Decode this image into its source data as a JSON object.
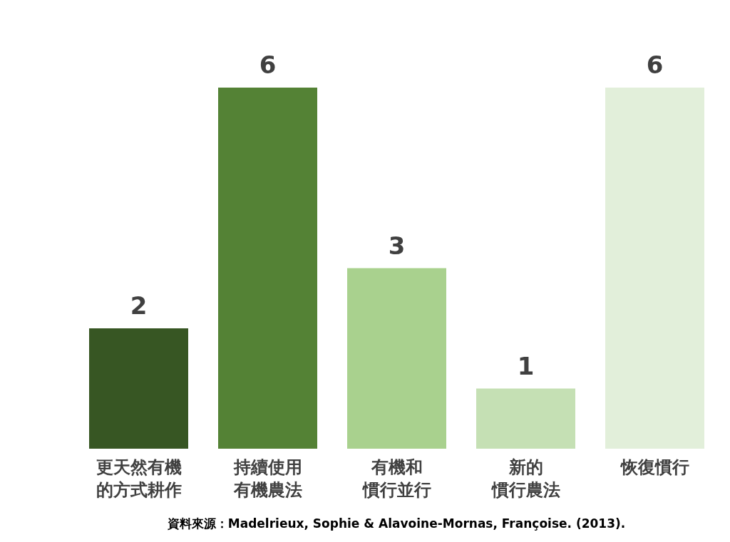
{
  "chart_data": {
    "type": "bar",
    "categories": [
      "更天然有機的方式耕作",
      "持續使用有機農法",
      "有機和慣行並行",
      "新的慣行農法",
      "恢復慣行"
    ],
    "values": [
      2,
      6,
      3,
      1,
      6
    ],
    "colors": [
      "#375623",
      "#548235",
      "#a9d18e",
      "#c5e0b4",
      "#e2efda"
    ],
    "data_labels": true,
    "annotations": [
      "資料來源：Madelrieux, Sophie & Alavoine-Mornas, Françoise. (2013)."
    ]
  }
}
